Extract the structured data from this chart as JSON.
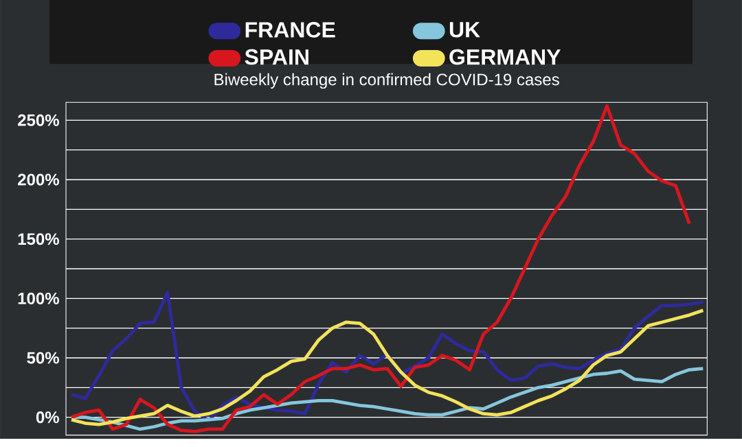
{
  "chart_data": {
    "type": "line",
    "title": "Biweekly change in confirmed COVID-19 cases",
    "categories": [
      null,
      null,
      null,
      null,
      null,
      null,
      null,
      null,
      null,
      null,
      null,
      null,
      null,
      null,
      null,
      null,
      null,
      null,
      null,
      null,
      null,
      null,
      null,
      null,
      null,
      null,
      null,
      null,
      null,
      null,
      null,
      null,
      null,
      null,
      null,
      null,
      null,
      null,
      null,
      null,
      null,
      null,
      null,
      null,
      null,
      null,
      null
    ],
    "series": [
      {
        "name": "FRANCE",
        "color": "#2e2a9c",
        "values": [
          19,
          16,
          35,
          56,
          66,
          79,
          80,
          105,
          25,
          5,
          -3,
          10,
          17,
          11,
          8,
          6,
          5,
          3,
          28,
          46,
          38,
          52,
          45,
          53,
          37,
          43,
          50,
          70,
          62,
          56,
          55,
          40,
          31,
          33,
          43,
          45,
          42,
          41,
          48,
          54,
          57,
          75,
          85,
          94,
          94,
          95,
          97
        ]
      },
      {
        "name": "UK",
        "color": "#86c6dc",
        "values": [
          0,
          0,
          -2,
          -4,
          -7,
          -10,
          -8,
          -5,
          -3,
          -3,
          -2,
          -1,
          3,
          6,
          8,
          10,
          12,
          13,
          14,
          14,
          12,
          10,
          9,
          7,
          5,
          3,
          2,
          2,
          5,
          8,
          7,
          12,
          17,
          21,
          25,
          27,
          30,
          33,
          36,
          37,
          39,
          32,
          31,
          30,
          36,
          40,
          41
        ]
      },
      {
        "name": "SPAIN",
        "color": "#d8161e",
        "values": [
          0,
          4,
          6,
          -10,
          -6,
          15,
          8,
          -6,
          -11,
          -12,
          -10,
          -10,
          6,
          9,
          19,
          11,
          19,
          30,
          35,
          41,
          41,
          44,
          40,
          41,
          26,
          42,
          44,
          52,
          48,
          40,
          70,
          80,
          100,
          125,
          150,
          170,
          186,
          212,
          232,
          262,
          229,
          222,
          207,
          199,
          195,
          163,
          null
        ]
      },
      {
        "name": "GERMANY",
        "color": "#f2e35a",
        "values": [
          -2,
          -5,
          -6,
          -4,
          -1,
          1,
          3,
          10,
          5,
          1,
          3,
          7,
          14,
          22,
          34,
          40,
          47,
          49,
          65,
          75,
          80,
          79,
          70,
          52,
          38,
          27,
          21,
          18,
          13,
          7,
          3,
          2,
          4,
          9,
          14,
          18,
          24,
          31,
          44,
          52,
          55,
          66,
          77,
          80,
          83,
          86,
          90
        ]
      }
    ],
    "ylim": [
      -15,
      265
    ],
    "yticks": [
      {
        "value": 0,
        "label": "0%"
      },
      {
        "value": 25,
        "label": null
      },
      {
        "value": 50,
        "label": "50%"
      },
      {
        "value": 75,
        "label": null
      },
      {
        "value": 100,
        "label": "100%"
      },
      {
        "value": 125,
        "label": null
      },
      {
        "value": 150,
        "label": "150%"
      },
      {
        "value": 175,
        "label": null
      },
      {
        "value": 200,
        "label": "200%"
      },
      {
        "value": 225,
        "label": null
      },
      {
        "value": 250,
        "label": "250%"
      }
    ],
    "grid": "y",
    "legend": "top",
    "tick_labels": "y"
  }
}
